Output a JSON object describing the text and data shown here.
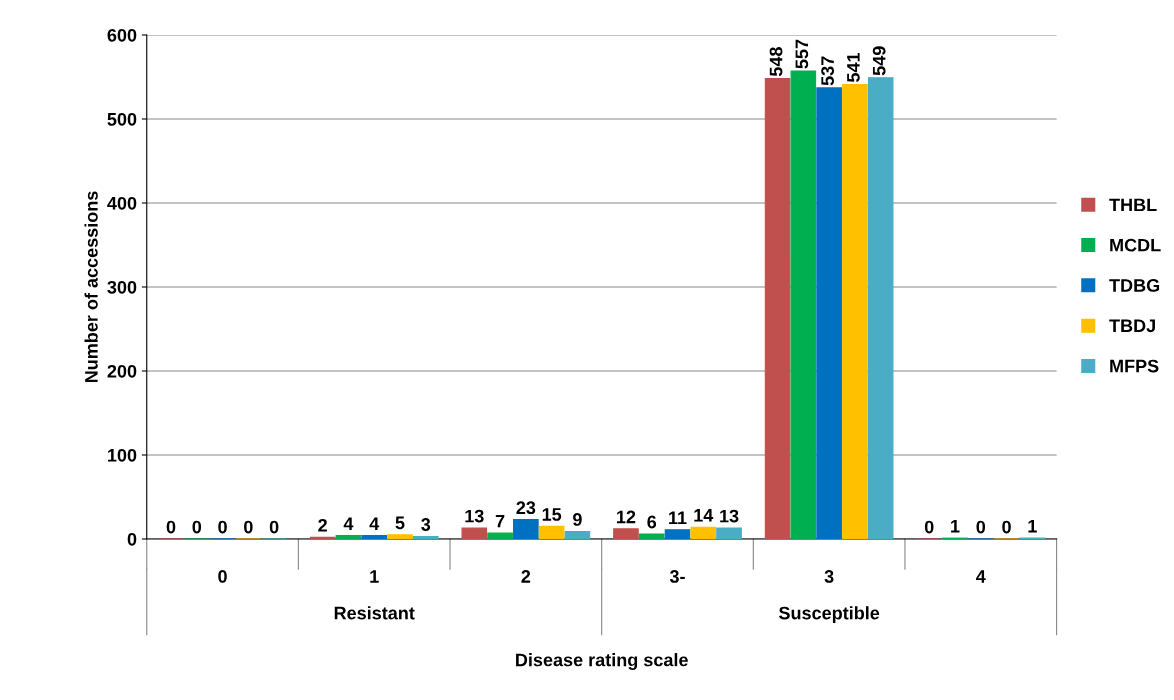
{
  "chart_data": {
    "type": "bar",
    "xlabel": "Disease rating scale",
    "ylabel": "Number of accessions",
    "categories": [
      "0",
      "1",
      "2",
      "3-",
      "3",
      "4"
    ],
    "series": [
      {
        "name": "THBL",
        "color": "#c0504d",
        "values": [
          0,
          2,
          13,
          12,
          548,
          0
        ]
      },
      {
        "name": "MCDL",
        "color": "#00b050",
        "values": [
          0,
          4,
          7,
          6,
          557,
          1
        ]
      },
      {
        "name": "TDBG",
        "color": "#0070c0",
        "values": [
          0,
          4,
          23,
          11,
          537,
          0
        ]
      },
      {
        "name": "TBDJ",
        "color": "#ffc000",
        "values": [
          0,
          5,
          15,
          14,
          541,
          0
        ]
      },
      {
        "name": "MFPS",
        "color": "#4bacc6",
        "values": [
          0,
          3,
          9,
          13,
          549,
          1
        ]
      }
    ],
    "annotations": [
      "Resistant",
      "Susceptible"
    ],
    "ylim": [
      0,
      600
    ],
    "yticks": [
      0,
      100,
      200,
      300,
      400,
      500,
      600
    ],
    "grid": "y",
    "legend": "right",
    "data_labels": true
  }
}
